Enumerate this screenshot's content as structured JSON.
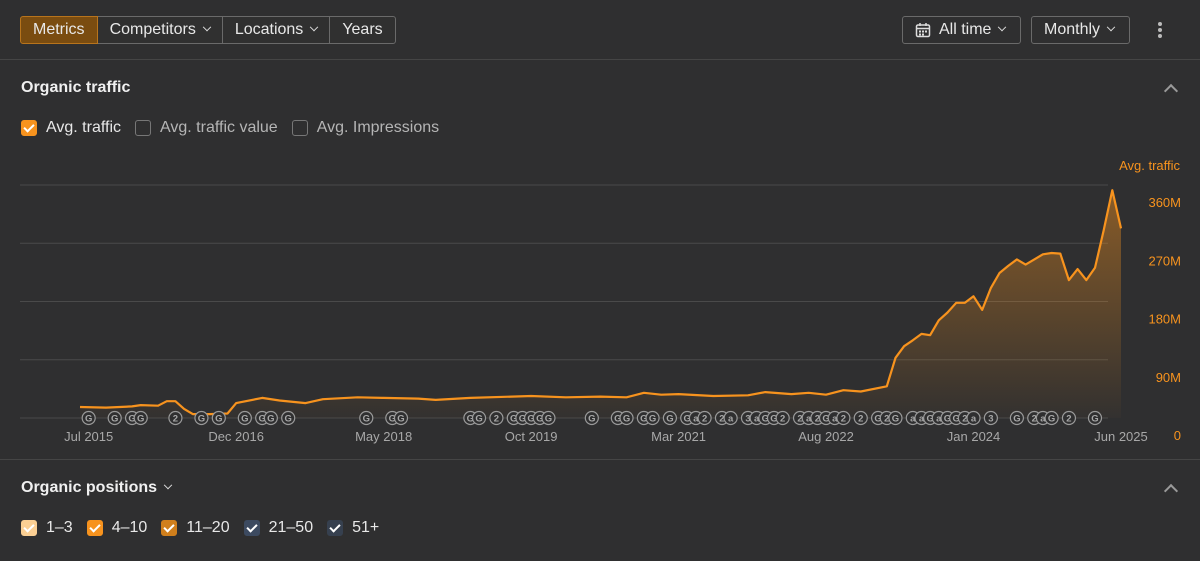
{
  "toolbar": {
    "tabs": [
      "Metrics",
      "Competitors",
      "Locations",
      "Years"
    ],
    "date_range": "All time",
    "interval": "Monthly"
  },
  "organic_traffic": {
    "title": "Organic traffic",
    "options": [
      {
        "label": "Avg. traffic",
        "checked": true,
        "color": "#f7931e"
      },
      {
        "label": "Avg. traffic value",
        "checked": false
      },
      {
        "label": "Avg. Impressions",
        "checked": false
      }
    ]
  },
  "chart_data": {
    "type": "area",
    "x": [
      "2015-06",
      "2015-09",
      "2015-12",
      "2016-01",
      "2016-03",
      "2016-04",
      "2016-05",
      "2016-06",
      "2016-07",
      "2016-09",
      "2016-11",
      "2016-12",
      "2017-03",
      "2017-05",
      "2017-08",
      "2017-10",
      "2018-02",
      "2018-05",
      "2018-09",
      "2018-11",
      "2019-03",
      "2019-10",
      "2020-02",
      "2020-06",
      "2020-09",
      "2020-11",
      "2021-01",
      "2021-03",
      "2021-07",
      "2021-11",
      "2022-01",
      "2022-04",
      "2022-06",
      "2022-08",
      "2022-10",
      "2022-12",
      "2023-03",
      "2023-04",
      "2023-05",
      "2023-06",
      "2023-07",
      "2023-08",
      "2023-09",
      "2023-10",
      "2023-11",
      "2023-12",
      "2024-01",
      "2024-02",
      "2024-03",
      "2024-04",
      "2024-05",
      "2024-06",
      "2024-07",
      "2024-08",
      "2024-09",
      "2024-10",
      "2024-11",
      "2024-12",
      "2025-01",
      "2025-02",
      "2025-03",
      "2025-04",
      "2025-05",
      "2025-06"
    ],
    "series": [
      {
        "name": "Avg. traffic",
        "color": "#f7931e",
        "values": [
          17000000,
          16000000,
          18000000,
          20000000,
          19000000,
          26000000,
          26000000,
          14000000,
          6000000,
          6000000,
          7000000,
          23000000,
          31000000,
          27000000,
          23000000,
          29000000,
          32000000,
          31000000,
          30000000,
          28000000,
          31000000,
          34000000,
          32000000,
          33000000,
          32000000,
          39000000,
          36000000,
          37000000,
          34000000,
          35000000,
          40000000,
          37000000,
          39000000,
          36000000,
          43000000,
          41000000,
          49000000,
          93000000,
          111000000,
          120000000,
          130000000,
          128000000,
          151000000,
          163000000,
          178000000,
          178000000,
          188000000,
          167000000,
          201000000,
          224000000,
          235000000,
          245000000,
          237000000,
          245000000,
          253000000,
          255000000,
          254000000,
          213000000,
          230000000,
          213000000,
          232000000,
          290000000,
          352000000,
          293000000
        ]
      }
    ],
    "xlim": [
      "2015-06",
      "2025-06"
    ],
    "xticks": [
      {
        "value": "2015-07",
        "label": "Jul 2015"
      },
      {
        "value": "2016-12",
        "label": "Dec 2016"
      },
      {
        "value": "2018-05",
        "label": "May 2018"
      },
      {
        "value": "2019-10",
        "label": "Oct 2019"
      },
      {
        "value": "2021-03",
        "label": "Mar 2021"
      },
      {
        "value": "2022-08",
        "label": "Aug 2022"
      },
      {
        "value": "2024-01",
        "label": "Jan 2024"
      },
      {
        "value": "2025-06",
        "label": "Jun 2025"
      }
    ],
    "ylim": [
      0,
      360000000
    ],
    "yticks": [
      0,
      {
        "value": 90000000,
        "label": "90M"
      },
      {
        "value": 180000000,
        "label": "180M"
      },
      {
        "value": 270000000,
        "label": "270M"
      },
      {
        "value": 360000000,
        "label": "360M"
      }
    ],
    "grid": true,
    "annotations": [
      {
        "x": "2015-07",
        "label": "G"
      },
      {
        "x": "2015-10",
        "label": "G"
      },
      {
        "x": "2015-12",
        "label": "G"
      },
      {
        "x": "2016-01",
        "label": "G"
      },
      {
        "x": "2016-05",
        "label": "2"
      },
      {
        "x": "2016-08",
        "label": "G"
      },
      {
        "x": "2016-10",
        "label": "G"
      },
      {
        "x": "2017-01",
        "label": "G"
      },
      {
        "x": "2017-03",
        "label": "G"
      },
      {
        "x": "2017-04",
        "label": "G"
      },
      {
        "x": "2017-06",
        "label": "G"
      },
      {
        "x": "2018-03",
        "label": "G"
      },
      {
        "x": "2018-06",
        "label": "G"
      },
      {
        "x": "2018-07",
        "label": "G"
      },
      {
        "x": "2019-03",
        "label": "G"
      },
      {
        "x": "2019-04",
        "label": "G"
      },
      {
        "x": "2019-06",
        "label": "2"
      },
      {
        "x": "2019-08",
        "label": "G"
      },
      {
        "x": "2019-09",
        "label": "G"
      },
      {
        "x": "2019-10",
        "label": "G"
      },
      {
        "x": "2019-11",
        "label": "G"
      },
      {
        "x": "2019-12",
        "label": "G"
      },
      {
        "x": "2020-05",
        "label": "G"
      },
      {
        "x": "2020-08",
        "label": "G"
      },
      {
        "x": "2020-09",
        "label": "G"
      },
      {
        "x": "2020-11",
        "label": "G"
      },
      {
        "x": "2020-12",
        "label": "G"
      },
      {
        "x": "2021-02",
        "label": "G"
      },
      {
        "x": "2021-04",
        "label": "G"
      },
      {
        "x": "2021-05",
        "label": "a"
      },
      {
        "x": "2021-06",
        "label": "2"
      },
      {
        "x": "2021-08",
        "label": "2"
      },
      {
        "x": "2021-09",
        "label": "a"
      },
      {
        "x": "2021-11",
        "label": "3"
      },
      {
        "x": "2021-12",
        "label": "a"
      },
      {
        "x": "2022-01",
        "label": "G"
      },
      {
        "x": "2022-02",
        "label": "G"
      },
      {
        "x": "2022-03",
        "label": "2"
      },
      {
        "x": "2022-05",
        "label": "2"
      },
      {
        "x": "2022-06",
        "label": "a"
      },
      {
        "x": "2022-07",
        "label": "2"
      },
      {
        "x": "2022-08",
        "label": "G"
      },
      {
        "x": "2022-09",
        "label": "a"
      },
      {
        "x": "2022-10",
        "label": "2"
      },
      {
        "x": "2022-12",
        "label": "2"
      },
      {
        "x": "2023-02",
        "label": "G"
      },
      {
        "x": "2023-03",
        "label": "2"
      },
      {
        "x": "2023-04",
        "label": "G"
      },
      {
        "x": "2023-06",
        "label": "a"
      },
      {
        "x": "2023-07",
        "label": "a"
      },
      {
        "x": "2023-08",
        "label": "G"
      },
      {
        "x": "2023-09",
        "label": "a"
      },
      {
        "x": "2023-10",
        "label": "G"
      },
      {
        "x": "2023-11",
        "label": "G"
      },
      {
        "x": "2023-12",
        "label": "2"
      },
      {
        "x": "2024-01",
        "label": "a"
      },
      {
        "x": "2024-03",
        "label": "3"
      },
      {
        "x": "2024-06",
        "label": "G"
      },
      {
        "x": "2024-08",
        "label": "2"
      },
      {
        "x": "2024-09",
        "label": "a"
      },
      {
        "x": "2024-10",
        "label": "G"
      },
      {
        "x": "2024-12",
        "label": "2"
      },
      {
        "x": "2025-03",
        "label": "G"
      }
    ]
  },
  "organic_positions": {
    "title": "Organic positions",
    "options": [
      {
        "label": "1–3",
        "checked": true,
        "color": "#fbcf93"
      },
      {
        "label": "4–10",
        "checked": true,
        "color": "#f7931e"
      },
      {
        "label": "11–20",
        "checked": true,
        "color": "#d07f1c"
      },
      {
        "label": "21–50",
        "checked": true,
        "color": "#3c4a60"
      },
      {
        "label": "51+",
        "checked": true,
        "color": "#36404f"
      }
    ]
  }
}
